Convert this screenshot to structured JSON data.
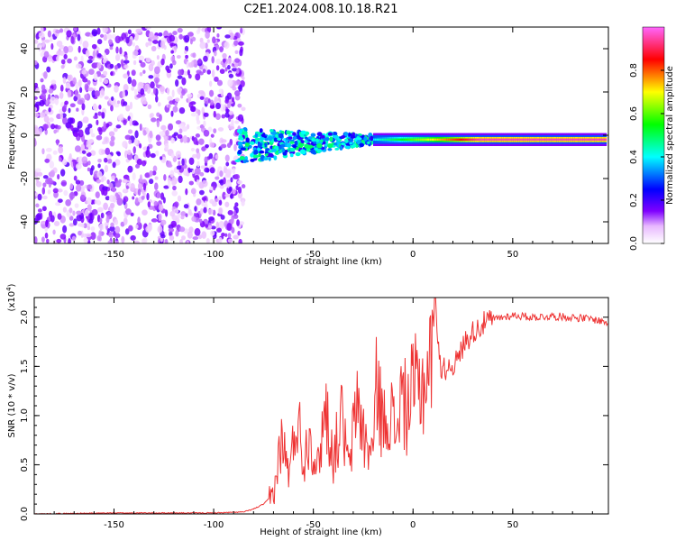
{
  "title": "C2E1.2024.008.10.18.R21",
  "colors": {
    "snr_line": "#ee3333",
    "axis": "#000000",
    "scatter_noise": "#7f00ff",
    "colormap": [
      "#ff66ff",
      "#ff0000",
      "#ffcc00",
      "#00ff00",
      "#00ffff",
      "#0000ff",
      "#7f00ff",
      "#ffffff"
    ]
  },
  "chart_data": [
    {
      "type": "heatmap",
      "name": "spectrogram",
      "xlabel": "Height of straight line (km)",
      "ylabel": "Frequency (Hz)",
      "xlim": [
        -190,
        98
      ],
      "ylim": [
        -50,
        50
      ],
      "xticks": [
        -150,
        -100,
        -50,
        0,
        50
      ],
      "yticks": [
        -40,
        -20,
        0,
        20,
        40
      ],
      "colorbar": {
        "label": "Normalized spectral amplitude",
        "range": [
          0.0,
          1.0
        ],
        "ticks": [
          "0.0",
          "0.2",
          "0.4",
          "0.6",
          "0.8"
        ]
      },
      "regions": [
        {
          "desc": "noise",
          "x": [
            -190,
            -85
          ],
          "freq": [
            -50,
            50
          ],
          "amplitude": [
            0.0,
            0.15
          ]
        },
        {
          "desc": "onset",
          "x": [
            -88,
            -20
          ],
          "freq_center": [
            -5,
            -2
          ],
          "amplitude": [
            0.2,
            0.5
          ]
        },
        {
          "desc": "tone",
          "x": [
            -20,
            97
          ],
          "freq_center": -2,
          "amplitude": [
            0.4,
            0.95
          ]
        }
      ]
    },
    {
      "type": "line",
      "name": "snr",
      "xlabel": "Height of straight line (km)",
      "ylabel": "SNR (10 * v/v)",
      "y_multiplier": "(x10",
      "y_exponent": "4",
      "y_multiplier_close": ")",
      "xlim": [
        -190,
        98
      ],
      "ylim": [
        0.0,
        2.2
      ],
      "xticks": [
        -150,
        -100,
        -50,
        0,
        50
      ],
      "yticks": [
        "0.0",
        "0.5",
        "1.0",
        "1.5",
        "2.0"
      ],
      "x": [
        -190,
        -150,
        -100,
        -85,
        -80,
        -75,
        -70,
        -66,
        -62,
        -58,
        -55,
        -52,
        -48,
        -44,
        -40,
        -36,
        -32,
        -28,
        -24,
        -20,
        -18,
        -15,
        -12,
        -9,
        -6,
        -3,
        0,
        3,
        6,
        9,
        11,
        14,
        18,
        22,
        26,
        30,
        35,
        40,
        45,
        50,
        60,
        70,
        80,
        90,
        97
      ],
      "y": [
        0.0,
        0.01,
        0.01,
        0.02,
        0.05,
        0.1,
        0.2,
        0.75,
        0.4,
        1.05,
        0.5,
        0.85,
        0.45,
        1.1,
        0.55,
        0.98,
        0.45,
        1.2,
        0.7,
        0.65,
        1.4,
        0.85,
        1.15,
        0.8,
        1.2,
        1.05,
        1.25,
        1.3,
        1.35,
        1.6,
        2.2,
        1.45,
        1.5,
        1.55,
        1.75,
        1.85,
        1.93,
        1.98,
        2.0,
        2.02,
        2.0,
        2.01,
        2.0,
        1.98,
        1.95
      ]
    }
  ]
}
